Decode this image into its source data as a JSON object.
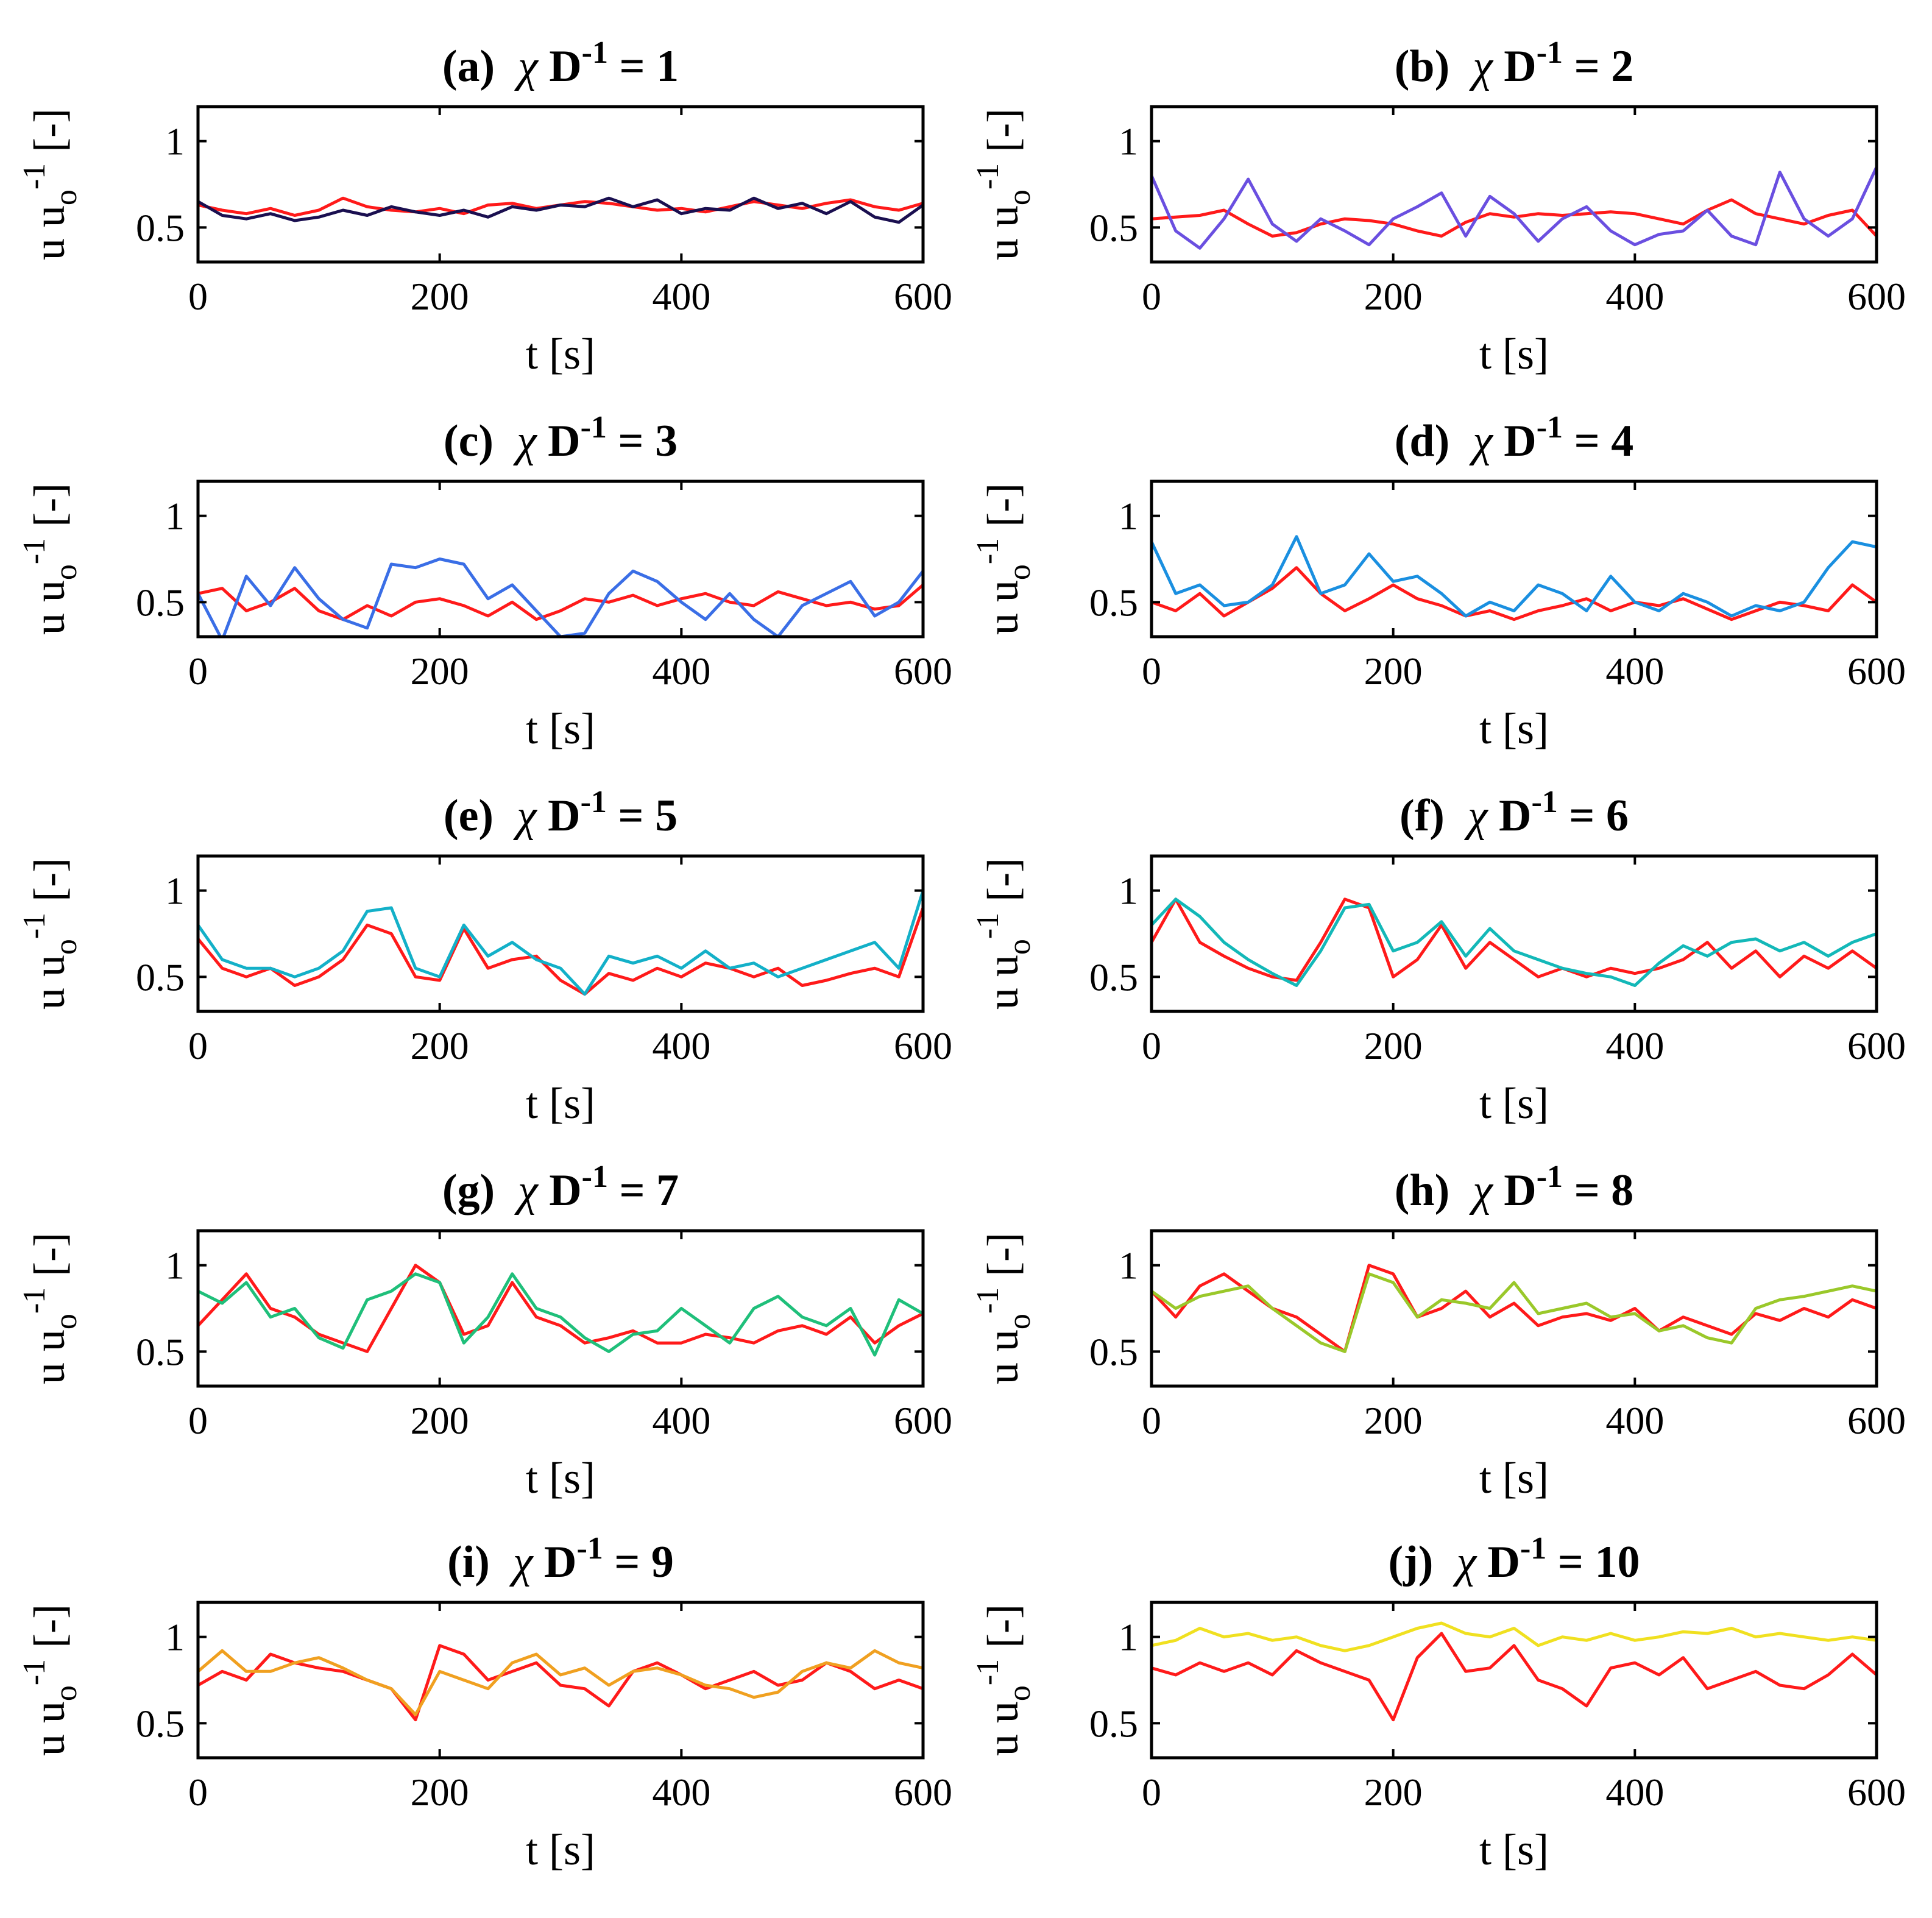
{
  "chart_data": {
    "type": "line",
    "layout": "5x2 grid of line plots",
    "x_label": "t [s]",
    "y_label": "u u_o^-1 [-]",
    "x_ticks": [
      0,
      200,
      400,
      600
    ],
    "y_ticks": [
      0.5,
      1
    ],
    "xlim": [
      0,
      600
    ],
    "ylim": [
      0.3,
      1.2
    ],
    "reference_series": {
      "name": "reference",
      "color": "#ff1a1a"
    },
    "panels": [
      {
        "id": "a",
        "label": "(a)",
        "ratio": "1",
        "color": "#1a0f50",
        "x": [
          0,
          20,
          40,
          60,
          80,
          100,
          120,
          140,
          160,
          180,
          200,
          220,
          240,
          260,
          280,
          300,
          320,
          340,
          360,
          380,
          400,
          420,
          440,
          460,
          480,
          500,
          520,
          540,
          560,
          580,
          600
        ],
        "reference": [
          0.63,
          0.6,
          0.58,
          0.61,
          0.57,
          0.6,
          0.67,
          0.62,
          0.6,
          0.59,
          0.61,
          0.58,
          0.63,
          0.64,
          0.61,
          0.63,
          0.65,
          0.64,
          0.62,
          0.6,
          0.61,
          0.59,
          0.62,
          0.65,
          0.63,
          0.61,
          0.64,
          0.66,
          0.62,
          0.6,
          0.64
        ],
        "values": [
          0.65,
          0.57,
          0.55,
          0.58,
          0.54,
          0.56,
          0.6,
          0.57,
          0.62,
          0.59,
          0.57,
          0.6,
          0.56,
          0.62,
          0.6,
          0.63,
          0.62,
          0.67,
          0.62,
          0.66,
          0.58,
          0.61,
          0.6,
          0.67,
          0.61,
          0.64,
          0.58,
          0.65,
          0.56,
          0.53,
          0.63
        ]
      },
      {
        "id": "b",
        "label": "(b)",
        "ratio": "2",
        "color": "#6a4fe0",
        "x": [
          0,
          20,
          40,
          60,
          80,
          100,
          120,
          140,
          160,
          180,
          200,
          220,
          240,
          260,
          280,
          300,
          320,
          340,
          360,
          380,
          400,
          420,
          440,
          460,
          480,
          500,
          520,
          540,
          560,
          580,
          600
        ],
        "reference": [
          0.55,
          0.56,
          0.57,
          0.6,
          0.52,
          0.45,
          0.47,
          0.52,
          0.55,
          0.54,
          0.52,
          0.48,
          0.45,
          0.53,
          0.58,
          0.56,
          0.58,
          0.57,
          0.58,
          0.59,
          0.58,
          0.55,
          0.52,
          0.6,
          0.66,
          0.58,
          0.55,
          0.52,
          0.57,
          0.6,
          0.45
        ],
        "values": [
          0.8,
          0.48,
          0.38,
          0.55,
          0.78,
          0.52,
          0.42,
          0.55,
          0.48,
          0.4,
          0.55,
          0.62,
          0.7,
          0.45,
          0.68,
          0.58,
          0.42,
          0.55,
          0.62,
          0.48,
          0.4,
          0.46,
          0.48,
          0.6,
          0.45,
          0.4,
          0.82,
          0.55,
          0.45,
          0.55,
          0.85
        ]
      },
      {
        "id": "c",
        "label": "(c)",
        "ratio": "3",
        "color": "#3a6ee6",
        "x": [
          0,
          20,
          40,
          60,
          80,
          100,
          120,
          140,
          160,
          180,
          200,
          220,
          240,
          260,
          280,
          300,
          320,
          340,
          360,
          380,
          400,
          420,
          440,
          460,
          480,
          500,
          520,
          540,
          560,
          580,
          600
        ],
        "reference": [
          0.55,
          0.58,
          0.45,
          0.5,
          0.58,
          0.45,
          0.4,
          0.48,
          0.42,
          0.5,
          0.52,
          0.48,
          0.42,
          0.5,
          0.4,
          0.45,
          0.52,
          0.5,
          0.54,
          0.48,
          0.52,
          0.55,
          0.5,
          0.48,
          0.56,
          0.52,
          0.48,
          0.5,
          0.46,
          0.48,
          0.6
        ],
        "values": [
          0.55,
          0.28,
          0.65,
          0.48,
          0.7,
          0.52,
          0.4,
          0.35,
          0.72,
          0.7,
          0.75,
          0.72,
          0.52,
          0.6,
          0.45,
          0.3,
          0.32,
          0.55,
          0.68,
          0.62,
          0.5,
          0.4,
          0.55,
          0.4,
          0.3,
          0.48,
          0.55,
          0.62,
          0.42,
          0.5,
          0.68
        ]
      },
      {
        "id": "d",
        "label": "(d)",
        "ratio": "4",
        "color": "#1a8fe0",
        "x": [
          0,
          20,
          40,
          60,
          80,
          100,
          120,
          140,
          160,
          180,
          200,
          220,
          240,
          260,
          280,
          300,
          320,
          340,
          360,
          380,
          400,
          420,
          440,
          460,
          480,
          500,
          520,
          540,
          560,
          580,
          600
        ],
        "reference": [
          0.5,
          0.45,
          0.55,
          0.42,
          0.5,
          0.58,
          0.7,
          0.55,
          0.45,
          0.52,
          0.6,
          0.52,
          0.48,
          0.42,
          0.45,
          0.4,
          0.45,
          0.48,
          0.52,
          0.45,
          0.5,
          0.48,
          0.52,
          0.46,
          0.4,
          0.45,
          0.5,
          0.48,
          0.45,
          0.6,
          0.5
        ],
        "values": [
          0.85,
          0.55,
          0.6,
          0.48,
          0.5,
          0.6,
          0.88,
          0.55,
          0.6,
          0.78,
          0.62,
          0.65,
          0.55,
          0.42,
          0.5,
          0.45,
          0.6,
          0.55,
          0.45,
          0.65,
          0.5,
          0.45,
          0.55,
          0.5,
          0.42,
          0.48,
          0.45,
          0.5,
          0.7,
          0.85,
          0.82
        ]
      },
      {
        "id": "e",
        "label": "(e)",
        "ratio": "5",
        "color": "#13b0c8",
        "x": [
          0,
          20,
          40,
          60,
          80,
          100,
          120,
          140,
          160,
          180,
          200,
          220,
          240,
          260,
          280,
          300,
          320,
          340,
          360,
          380,
          400,
          420,
          440,
          460,
          480,
          500,
          520,
          540,
          560,
          580,
          600
        ],
        "reference": [
          0.72,
          0.55,
          0.5,
          0.55,
          0.45,
          0.5,
          0.6,
          0.8,
          0.75,
          0.5,
          0.48,
          0.78,
          0.55,
          0.6,
          0.62,
          0.48,
          0.4,
          0.52,
          0.48,
          0.55,
          0.5,
          0.58,
          0.55,
          0.5,
          0.55,
          0.45,
          0.48,
          0.52,
          0.55,
          0.5,
          0.9
        ],
        "values": [
          0.8,
          0.6,
          0.55,
          0.55,
          0.5,
          0.55,
          0.65,
          0.88,
          0.9,
          0.55,
          0.5,
          0.8,
          0.62,
          0.7,
          0.6,
          0.55,
          0.4,
          0.62,
          0.58,
          0.62,
          0.55,
          0.65,
          0.55,
          0.58,
          0.5,
          0.55,
          0.6,
          0.65,
          0.7,
          0.55,
          1.0
        ]
      },
      {
        "id": "f",
        "label": "(f)",
        "ratio": "6",
        "color": "#13b8b8",
        "x": [
          0,
          20,
          40,
          60,
          80,
          100,
          120,
          140,
          160,
          180,
          200,
          220,
          240,
          260,
          280,
          300,
          320,
          340,
          360,
          380,
          400,
          420,
          440,
          460,
          480,
          500,
          520,
          540,
          560,
          580,
          600
        ],
        "reference": [
          0.7,
          0.95,
          0.7,
          0.62,
          0.55,
          0.5,
          0.48,
          0.7,
          0.95,
          0.9,
          0.5,
          0.6,
          0.8,
          0.55,
          0.7,
          0.6,
          0.5,
          0.55,
          0.5,
          0.55,
          0.52,
          0.55,
          0.6,
          0.7,
          0.55,
          0.65,
          0.5,
          0.62,
          0.55,
          0.65,
          0.55
        ],
        "values": [
          0.8,
          0.95,
          0.85,
          0.7,
          0.6,
          0.52,
          0.45,
          0.65,
          0.9,
          0.92,
          0.65,
          0.7,
          0.82,
          0.62,
          0.78,
          0.65,
          0.6,
          0.55,
          0.52,
          0.5,
          0.45,
          0.58,
          0.68,
          0.62,
          0.7,
          0.72,
          0.65,
          0.7,
          0.62,
          0.7,
          0.75
        ]
      },
      {
        "id": "g",
        "label": "(g)",
        "ratio": "7",
        "color": "#1fbf7a",
        "x": [
          0,
          20,
          40,
          60,
          80,
          100,
          120,
          140,
          160,
          180,
          200,
          220,
          240,
          260,
          280,
          300,
          320,
          340,
          360,
          380,
          400,
          420,
          440,
          460,
          480,
          500,
          520,
          540,
          560,
          580,
          600
        ],
        "reference": [
          0.65,
          0.8,
          0.95,
          0.75,
          0.7,
          0.6,
          0.55,
          0.5,
          0.75,
          1.0,
          0.9,
          0.6,
          0.65,
          0.9,
          0.7,
          0.65,
          0.55,
          0.58,
          0.62,
          0.55,
          0.55,
          0.6,
          0.58,
          0.55,
          0.62,
          0.65,
          0.6,
          0.7,
          0.55,
          0.65,
          0.72
        ],
        "values": [
          0.85,
          0.78,
          0.9,
          0.7,
          0.75,
          0.58,
          0.52,
          0.8,
          0.85,
          0.95,
          0.9,
          0.55,
          0.7,
          0.95,
          0.75,
          0.7,
          0.58,
          0.5,
          0.6,
          0.62,
          0.75,
          0.65,
          0.55,
          0.75,
          0.82,
          0.7,
          0.65,
          0.75,
          0.48,
          0.8,
          0.72
        ]
      },
      {
        "id": "h",
        "label": "(h)",
        "ratio": "8",
        "color": "#9ac82a",
        "x": [
          0,
          20,
          40,
          60,
          80,
          100,
          120,
          140,
          160,
          180,
          200,
          220,
          240,
          260,
          280,
          300,
          320,
          340,
          360,
          380,
          400,
          420,
          440,
          460,
          480,
          500,
          520,
          540,
          560,
          580,
          600
        ],
        "reference": [
          0.85,
          0.7,
          0.88,
          0.95,
          0.85,
          0.75,
          0.7,
          0.6,
          0.5,
          1.0,
          0.95,
          0.7,
          0.75,
          0.85,
          0.7,
          0.78,
          0.65,
          0.7,
          0.72,
          0.68,
          0.75,
          0.62,
          0.7,
          0.65,
          0.6,
          0.72,
          0.68,
          0.75,
          0.7,
          0.8,
          0.75
        ],
        "values": [
          0.85,
          0.75,
          0.82,
          0.85,
          0.88,
          0.75,
          0.65,
          0.55,
          0.5,
          0.95,
          0.9,
          0.7,
          0.8,
          0.78,
          0.75,
          0.9,
          0.72,
          0.75,
          0.78,
          0.7,
          0.72,
          0.62,
          0.65,
          0.58,
          0.55,
          0.75,
          0.8,
          0.82,
          0.85,
          0.88,
          0.85
        ]
      },
      {
        "id": "i",
        "label": "(i)",
        "ratio": "9",
        "color": "#f0a020",
        "x": [
          0,
          20,
          40,
          60,
          80,
          100,
          120,
          140,
          160,
          180,
          200,
          220,
          240,
          260,
          280,
          300,
          320,
          340,
          360,
          380,
          400,
          420,
          440,
          460,
          480,
          500,
          520,
          540,
          560,
          580,
          600
        ],
        "reference": [
          0.72,
          0.8,
          0.75,
          0.9,
          0.85,
          0.82,
          0.8,
          0.75,
          0.7,
          0.52,
          0.95,
          0.9,
          0.75,
          0.8,
          0.85,
          0.72,
          0.7,
          0.6,
          0.8,
          0.85,
          0.78,
          0.7,
          0.75,
          0.8,
          0.72,
          0.75,
          0.85,
          0.8,
          0.7,
          0.75,
          0.7
        ],
        "values": [
          0.8,
          0.92,
          0.8,
          0.8,
          0.85,
          0.88,
          0.82,
          0.75,
          0.7,
          0.55,
          0.8,
          0.75,
          0.7,
          0.85,
          0.9,
          0.78,
          0.82,
          0.72,
          0.8,
          0.82,
          0.78,
          0.72,
          0.7,
          0.65,
          0.68,
          0.8,
          0.85,
          0.82,
          0.92,
          0.85,
          0.82
        ]
      },
      {
        "id": "j",
        "label": "(j)",
        "ratio": "10",
        "color": "#f0e020",
        "x": [
          0,
          20,
          40,
          60,
          80,
          100,
          120,
          140,
          160,
          180,
          200,
          220,
          240,
          260,
          280,
          300,
          320,
          340,
          360,
          380,
          400,
          420,
          440,
          460,
          480,
          500,
          520,
          540,
          560,
          580,
          600
        ],
        "reference": [
          0.82,
          0.78,
          0.85,
          0.8,
          0.85,
          0.78,
          0.92,
          0.85,
          0.8,
          0.75,
          0.52,
          0.88,
          1.02,
          0.8,
          0.82,
          0.95,
          0.75,
          0.7,
          0.6,
          0.82,
          0.85,
          0.78,
          0.88,
          0.7,
          0.75,
          0.8,
          0.72,
          0.7,
          0.78,
          0.9,
          0.78
        ],
        "values": [
          0.95,
          0.98,
          1.05,
          1.0,
          1.02,
          0.98,
          1.0,
          0.95,
          0.92,
          0.95,
          1.0,
          1.05,
          1.08,
          1.02,
          1.0,
          1.05,
          0.95,
          1.0,
          0.98,
          1.02,
          0.98,
          1.0,
          1.03,
          1.02,
          1.05,
          1.0,
          1.02,
          1.0,
          0.98,
          1.0,
          0.98
        ]
      }
    ]
  }
}
